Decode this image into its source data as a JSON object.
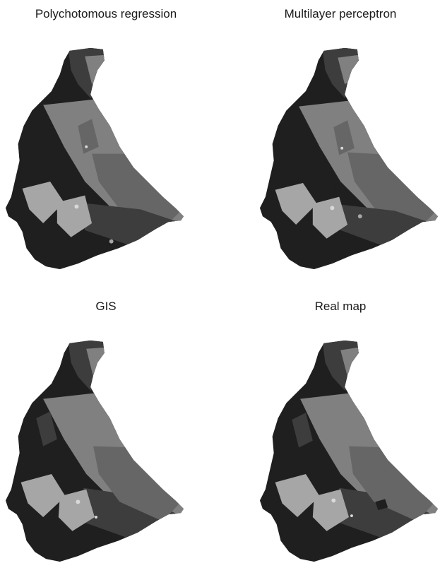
{
  "figure": {
    "panels": [
      {
        "title": "Polychotomous regression"
      },
      {
        "title": "Multilayer perceptron"
      },
      {
        "title": "GIS"
      },
      {
        "title": "Real map"
      }
    ]
  },
  "colors": {
    "background": "#ffffff",
    "class_dark": "#1f1f1f",
    "class_mid_dark": "#3d3d3d",
    "class_mid": "#666666",
    "class_mid_light": "#808080",
    "class_light": "#a6a6a6",
    "class_white": "#d9d9d9"
  }
}
